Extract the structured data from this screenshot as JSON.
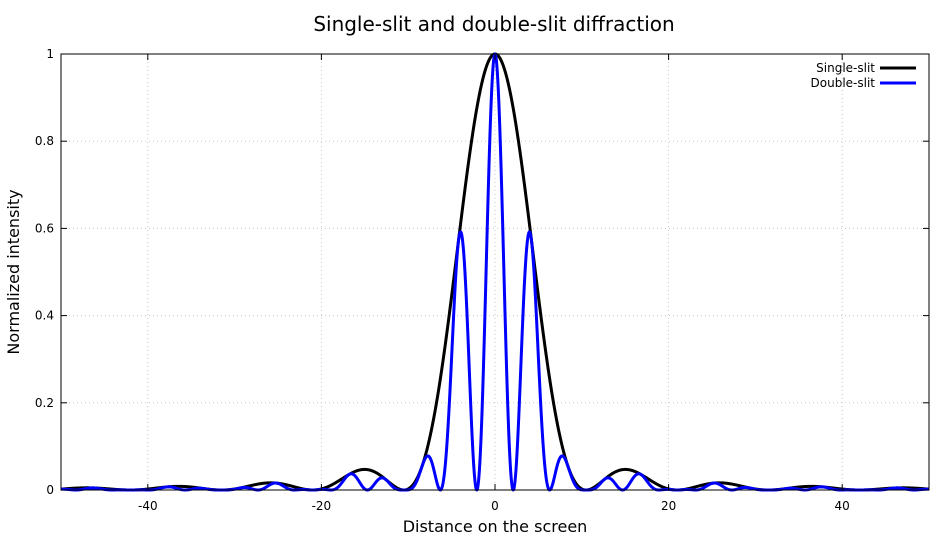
{
  "chart_data": {
    "type": "line",
    "title": "Single-slit and double-slit diffraction",
    "xlabel": "Distance on the screen",
    "ylabel": "Normalized intensity",
    "xlim": [
      -50,
      50
    ],
    "ylim": [
      0,
      1
    ],
    "xticks": [
      -40,
      -20,
      0,
      20,
      40
    ],
    "xtick_labels": [
      "-40",
      "-20",
      "0",
      "20",
      "40"
    ],
    "yticks": [
      0,
      0.2,
      0.4,
      0.6,
      0.8,
      1
    ],
    "ytick_labels": [
      "0",
      "0.2",
      "0.4",
      "0.6",
      "0.8",
      "1"
    ],
    "grid": true,
    "legend_position": "top-right",
    "series": [
      {
        "name": "Single-slit",
        "color": "#000000",
        "model": "sinc2",
        "first_zero": 10.5,
        "peak": 1.0
      },
      {
        "name": "Double-slit",
        "color": "#0000ff",
        "model": "sinc2_cos2",
        "first_zero": 10.5,
        "fringe_period": 4.2,
        "peak": 1.0
      }
    ]
  }
}
